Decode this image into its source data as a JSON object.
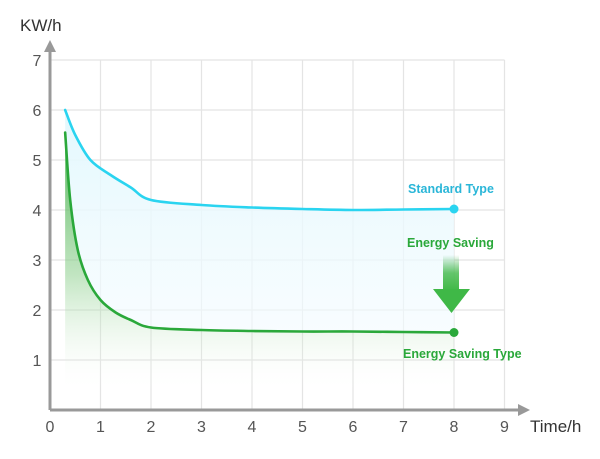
{
  "chart_data": {
    "type": "line",
    "xlabel": "Time/h",
    "ylabel": "KW/h",
    "xlim": [
      0,
      9
    ],
    "ylim": [
      0,
      7
    ],
    "x_ticks": [
      "0",
      "1",
      "2",
      "3",
      "4",
      "5",
      "6",
      "7",
      "8",
      "9"
    ],
    "y_ticks": [
      "1",
      "2",
      "3",
      "4",
      "5",
      "6",
      "7"
    ],
    "grid": true,
    "series": [
      {
        "name": "Standard Type",
        "color": "#2ad4f0",
        "points": [
          [
            0.3,
            6.0
          ],
          [
            0.5,
            5.5
          ],
          [
            0.8,
            5.0
          ],
          [
            1.2,
            4.7
          ],
          [
            1.6,
            4.45
          ],
          [
            2.0,
            4.2
          ],
          [
            3.0,
            4.1
          ],
          [
            4.0,
            4.05
          ],
          [
            5.0,
            4.02
          ],
          [
            6.0,
            4.0
          ],
          [
            7.0,
            4.01
          ],
          [
            8.0,
            4.02
          ]
        ]
      },
      {
        "name": "Energy Saving Type",
        "color": "#2aa83a",
        "points": [
          [
            0.3,
            5.55
          ],
          [
            0.4,
            4.2
          ],
          [
            0.55,
            3.2
          ],
          [
            0.75,
            2.6
          ],
          [
            1.0,
            2.2
          ],
          [
            1.3,
            1.95
          ],
          [
            1.6,
            1.8
          ],
          [
            2.0,
            1.65
          ],
          [
            3.0,
            1.6
          ],
          [
            4.0,
            1.58
          ],
          [
            5.0,
            1.57
          ],
          [
            6.0,
            1.57
          ],
          [
            7.0,
            1.56
          ],
          [
            8.0,
            1.55
          ]
        ]
      }
    ],
    "annotations": [
      {
        "text": "Energy Saving",
        "color": "#2aa83a"
      }
    ]
  }
}
